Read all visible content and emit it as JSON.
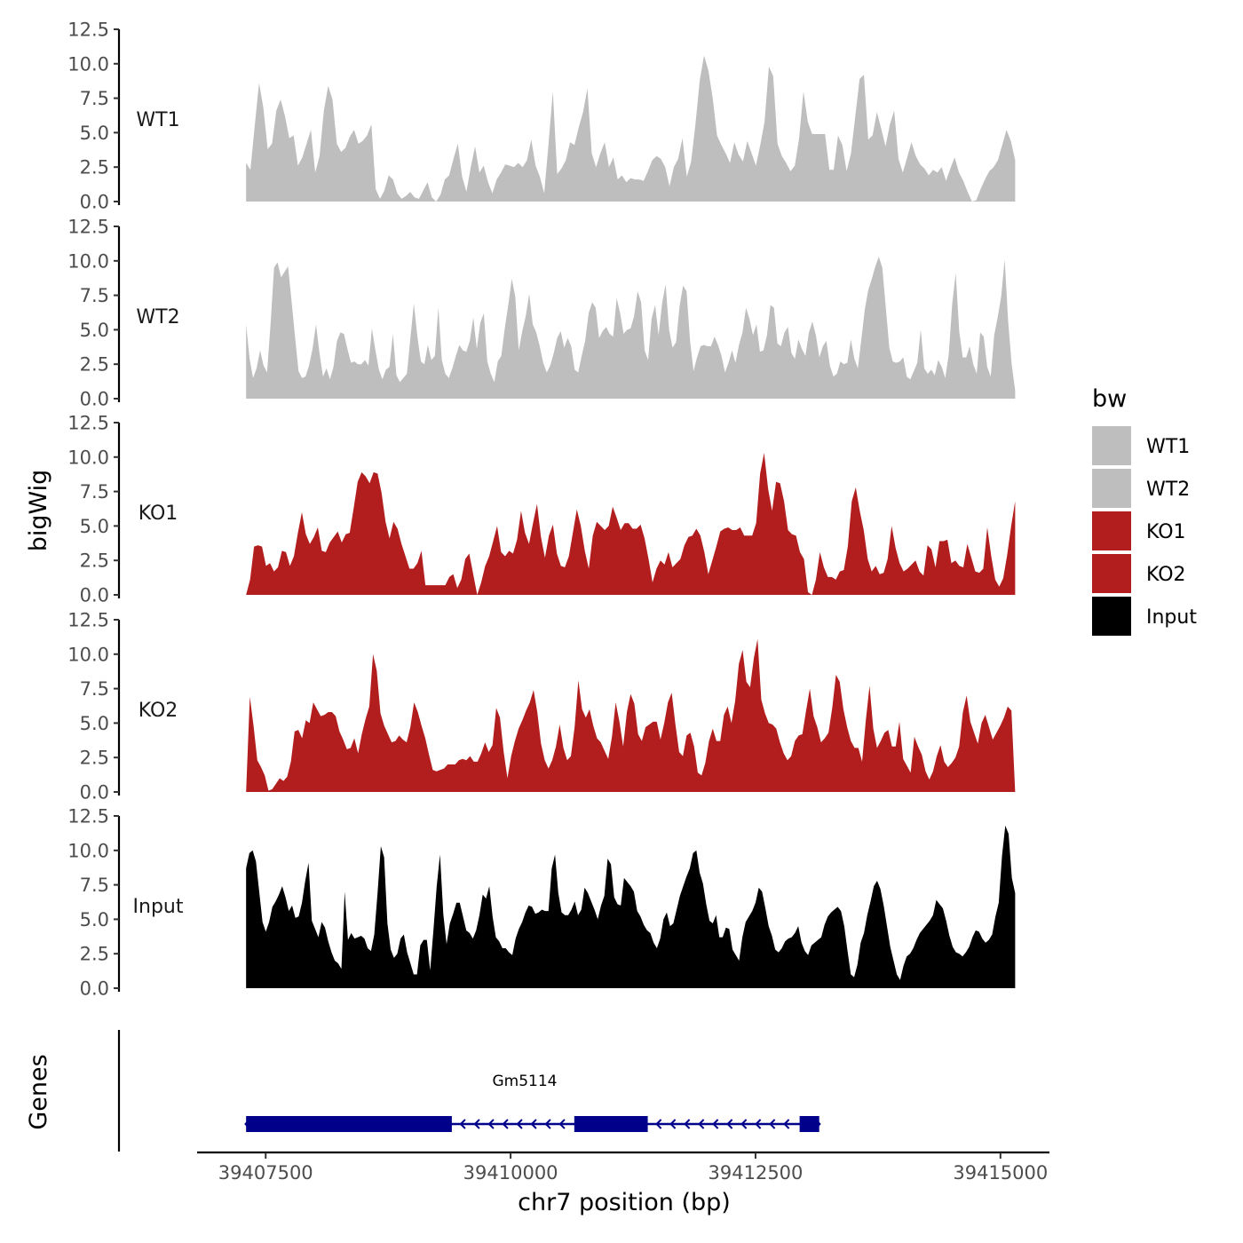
{
  "chart_data": {
    "type": "area",
    "chromosome": "chr7",
    "xlabel": "chr7 position (bp)",
    "ylabel": "bigWig",
    "genes_label": "Genes",
    "xlim": [
      39406800,
      39415500
    ],
    "x_ticks": [
      39407500,
      39410000,
      39412500,
      39415000
    ],
    "x_tick_labels": [
      "39407500",
      "39410000",
      "39412500",
      "39415000"
    ],
    "ylim": [
      0,
      12.5
    ],
    "y_ticks": [
      0,
      2.5,
      5,
      7.5,
      10,
      12.5
    ],
    "y_tick_labels": [
      "0.0",
      "2.5",
      "5.0",
      "7.5",
      "10.0",
      "12.5"
    ],
    "x_start": 39407300,
    "x_end": 39415150,
    "legend": {
      "title": "bw",
      "entries": [
        {
          "label": "WT1",
          "color": "#bebebe"
        },
        {
          "label": "WT2",
          "color": "#bebebe"
        },
        {
          "label": "KO1",
          "color": "#b21e1e"
        },
        {
          "label": "KO2",
          "color": "#b21e1e"
        },
        {
          "label": "Input",
          "color": "#000000"
        }
      ]
    },
    "series": [
      {
        "name": "WT1",
        "color": "#bebebe",
        "values": [
          2.8,
          2.3,
          5.5,
          8.6,
          6.8,
          3.8,
          4.2,
          6.6,
          7.4,
          6.2,
          4.6,
          4.8,
          2.6,
          3.2,
          4.2,
          5.2,
          2.1,
          3.3,
          6.6,
          8.4,
          7.4,
          4.2,
          3.6,
          3.9,
          4.7,
          5.2,
          4.2,
          4.4,
          4.8,
          5.6,
          0.9,
          0.2,
          0.8,
          1.9,
          1.6,
          0.6,
          0.2,
          0.4,
          0.7,
          0.3,
          0.2,
          0.8,
          1.4,
          0.3,
          -0.5,
          0.5,
          1.6,
          1.9,
          3.1,
          4.2,
          1.8,
          0.7,
          2.5,
          4.0,
          2.1,
          2.6,
          1.4,
          0.6,
          1.6,
          2.1,
          2.7,
          2.6,
          2.5,
          2.8,
          2.5,
          3.0,
          4.5,
          2.6,
          1.8,
          0.6,
          4.2,
          8.0,
          2.0,
          2.4,
          3.0,
          4.3,
          4.1,
          5.4,
          6.5,
          8.2,
          3.5,
          2.5,
          3.5,
          4.3,
          2.5,
          3.2,
          1.6,
          1.9,
          1.4,
          1.7,
          1.6,
          1.6,
          1.5,
          2.2,
          3.0,
          3.3,
          3.1,
          2.5,
          1.1,
          2.5,
          3.1,
          4.6,
          1.8,
          2.9,
          5.6,
          8.8,
          10.6,
          9.5,
          7.5,
          4.8,
          4.1,
          3.5,
          2.8,
          4.3,
          3.4,
          2.9,
          4.4,
          3.5,
          2.6,
          4.1,
          5.8,
          9.8,
          9.1,
          4.2,
          3.3,
          2.8,
          2.2,
          2.6,
          4.6,
          8.0,
          5.8,
          4.9,
          4.9,
          4.9,
          4.9,
          2.3,
          2.3,
          4.8,
          4.1,
          2.2,
          3.5,
          6.2,
          8.9,
          9.2,
          4.5,
          4.8,
          6.5,
          5.3,
          4.0,
          5.6,
          6.6,
          3.1,
          2.1,
          3.2,
          4.3,
          3.3,
          2.7,
          2.4,
          1.9,
          2.3,
          2.1,
          2.5,
          1.5,
          2.4,
          3.2,
          2.1,
          1.5,
          0.7,
          -0.3,
          0.1,
          0.9,
          1.6,
          2.2,
          2.5,
          3.0,
          4.1,
          5.2,
          4.4,
          3.0
        ]
      },
      {
        "name": "WT2",
        "color": "#bebebe",
        "values": [
          5.4,
          2.9,
          1.5,
          2.2,
          3.5,
          2.4,
          1.9,
          5.4,
          9.5,
          9.9,
          8.8,
          9.2,
          9.6,
          7.1,
          4.5,
          2.0,
          1.5,
          1.6,
          2.4,
          3.6,
          5.4,
          3.3,
          1.6,
          2.2,
          1.4,
          2.3,
          4.2,
          4.8,
          4.7,
          3.6,
          2.6,
          2.7,
          2.5,
          2.5,
          2.8,
          2.4,
          5.1,
          3.5,
          2.1,
          1.4,
          2.1,
          2.3,
          4.7,
          1.7,
          1.2,
          1.5,
          1.8,
          4.4,
          6.9,
          4.5,
          2.7,
          2.5,
          3.9,
          2.8,
          3.1,
          6.6,
          2.8,
          1.8,
          1.5,
          2.2,
          3.1,
          3.9,
          3.5,
          3.4,
          4.2,
          5.9,
          3.6,
          5.5,
          6.2,
          2.7,
          1.8,
          1.2,
          2.7,
          3.1,
          5.1,
          6.8,
          8.7,
          7.4,
          3.5,
          4.9,
          6.0,
          7.6,
          5.4,
          4.8,
          3.8,
          2.6,
          1.9,
          2.4,
          3.3,
          4.4,
          4.9,
          3.7,
          4.4,
          3.8,
          2.1,
          1.9,
          3.1,
          4.2,
          6.2,
          7.0,
          6.6,
          4.4,
          4.9,
          5.2,
          4.7,
          4.5,
          7.3,
          6.2,
          4.7,
          5.0,
          5.1,
          6.0,
          7.8,
          7.0,
          3.5,
          2.8,
          5.8,
          6.8,
          4.6,
          6.9,
          8.3,
          5.0,
          3.7,
          4.1,
          6.7,
          8.2,
          7.8,
          4.2,
          2.0,
          3.0,
          3.8,
          3.9,
          3.8,
          3.8,
          4.5,
          3.9,
          3.1,
          1.9,
          2.6,
          3.5,
          2.6,
          3.9,
          4.8,
          6.6,
          5.8,
          4.6,
          5.4,
          3.4,
          3.5,
          4.6,
          6.8,
          6.6,
          4.0,
          3.8,
          4.8,
          5.2,
          3.3,
          2.9,
          4.3,
          3.6,
          3.1,
          4.8,
          5.6,
          4.6,
          3.0,
          3.8,
          4.2,
          2.4,
          1.6,
          1.8,
          2.7,
          2.5,
          2.6,
          4.3,
          2.9,
          2.2,
          4.3,
          6.5,
          7.9,
          8.7,
          9.6,
          10.3,
          9.5,
          6.6,
          3.7,
          2.7,
          2.6,
          2.7,
          3.0,
          1.6,
          1.4,
          2.0,
          2.6,
          5.0,
          2.2,
          1.8,
          2.1,
          1.7,
          2.8,
          2.3,
          1.5,
          3.2,
          6.9,
          9.1,
          4.9,
          3.0,
          3.0,
          3.8,
          2.5,
          1.8,
          4.8,
          4.5,
          2.3,
          1.6,
          4.6,
          5.9,
          7.4,
          10.1,
          5.6,
          2.5,
          0.6
        ]
      },
      {
        "name": "KO1",
        "color": "#b21e1e",
        "values": [
          0.0,
          1.1,
          3.5,
          3.6,
          3.5,
          2.1,
          2.3,
          1.7,
          2.0,
          3.2,
          3.1,
          2.1,
          2.8,
          4.5,
          6.0,
          4.4,
          3.7,
          4.2,
          4.9,
          3.2,
          3.1,
          3.8,
          4.2,
          4.6,
          3.8,
          4.4,
          4.5,
          6.3,
          8.2,
          8.9,
          8.6,
          8.1,
          8.9,
          8.8,
          7.4,
          5.3,
          4.1,
          5.3,
          4.8,
          3.7,
          2.8,
          1.9,
          1.9,
          2.3,
          3.2,
          0.7,
          0.7,
          0.7,
          0.7,
          0.7,
          0.7,
          1.3,
          1.5,
          0.5,
          1.1,
          2.6,
          3.0,
          1.5,
          -0.3,
          0.9,
          2.1,
          2.8,
          3.9,
          5.0,
          3.1,
          2.8,
          3.2,
          3.0,
          4.0,
          6.1,
          4.5,
          3.7,
          5.2,
          6.6,
          4.2,
          2.7,
          4.3,
          5.1,
          3.0,
          2.1,
          2.0,
          2.8,
          4.5,
          6.2,
          5.0,
          3.2,
          1.9,
          4.3,
          5.3,
          5.0,
          4.7,
          5.0,
          6.4,
          5.6,
          4.7,
          5.2,
          5.2,
          4.8,
          4.8,
          5.1,
          4.1,
          2.6,
          0.9,
          1.9,
          2.5,
          2.2,
          3.1,
          2.0,
          2.3,
          2.6,
          3.6,
          4.2,
          4.3,
          4.8,
          4.3,
          3.1,
          1.5,
          2.5,
          3.5,
          4.6,
          4.8,
          4.9,
          4.7,
          4.7,
          4.9,
          4.3,
          4.3,
          4.3,
          5.2,
          8.8,
          10.3,
          7.7,
          6.1,
          8.2,
          8.1,
          6.8,
          4.7,
          4.4,
          4.3,
          3.1,
          2.6,
          0.2,
          0.0,
          1.1,
          3.1,
          2.0,
          1.3,
          1.3,
          1.1,
          1.7,
          1.8,
          3.5,
          6.8,
          7.8,
          6.1,
          4.7,
          2.6,
          1.7,
          2.1,
          1.5,
          1.6,
          2.6,
          5.0,
          3.4,
          2.3,
          1.7,
          1.9,
          2.2,
          2.5,
          1.7,
          1.4,
          3.6,
          3.3,
          2.0,
          3.9,
          3.9,
          4.0,
          2.3,
          2.5,
          2.1,
          2.0,
          3.7,
          2.7,
          1.7,
          1.6,
          1.9,
          4.9,
          2.8,
          1.1,
          0.6,
          1.2,
          2.9,
          5.0,
          6.8
        ]
      },
      {
        "name": "KO2",
        "color": "#b21e1e",
        "values": [
          0.0,
          6.9,
          4.8,
          2.3,
          1.8,
          1.2,
          0.1,
          0.2,
          0.6,
          1.0,
          0.8,
          1.1,
          2.2,
          4.4,
          4.5,
          3.9,
          5.2,
          5.0,
          6.5,
          6.0,
          5.5,
          5.6,
          5.8,
          5.8,
          5.5,
          4.4,
          3.8,
          3.1,
          3.2,
          3.9,
          2.8,
          4.2,
          5.3,
          6.2,
          10.0,
          8.8,
          5.7,
          4.8,
          4.2,
          3.6,
          3.7,
          4.1,
          3.8,
          3.6,
          4.7,
          6.5,
          5.8,
          4.8,
          3.9,
          2.7,
          1.6,
          1.5,
          1.6,
          1.7,
          2.0,
          2.0,
          2.0,
          2.3,
          2.4,
          2.3,
          2.6,
          2.2,
          2.2,
          2.8,
          3.6,
          2.9,
          3.4,
          6.1,
          5.4,
          2.9,
          1.0,
          2.6,
          3.7,
          4.6,
          5.2,
          5.9,
          6.5,
          7.4,
          5.8,
          3.5,
          2.3,
          1.7,
          2.3,
          3.3,
          4.9,
          3.2,
          2.3,
          2.6,
          4.7,
          8.1,
          6.0,
          5.4,
          6.0,
          4.8,
          3.9,
          3.6,
          3.0,
          2.4,
          4.0,
          6.5,
          5.1,
          3.3,
          5.8,
          7.1,
          6.4,
          4.2,
          3.7,
          4.7,
          4.9,
          5.1,
          5.1,
          3.8,
          5.0,
          6.5,
          7.2,
          4.9,
          2.9,
          2.6,
          4.1,
          4.3,
          3.3,
          1.4,
          1.2,
          2.1,
          3.7,
          4.6,
          3.7,
          3.7,
          5.6,
          6.2,
          5.0,
          6.6,
          9.3,
          10.3,
          8.0,
          7.6,
          9.7,
          11.1,
          6.7,
          5.7,
          5.0,
          4.9,
          4.6,
          3.6,
          2.8,
          2.3,
          2.6,
          3.7,
          4.1,
          4.2,
          5.9,
          7.5,
          5.5,
          4.7,
          3.6,
          3.9,
          4.3,
          6.1,
          8.5,
          8.0,
          6.0,
          4.7,
          3.7,
          3.2,
          3.2,
          2.2,
          5.2,
          7.7,
          4.6,
          3.2,
          3.7,
          4.3,
          4.5,
          3.3,
          3.3,
          5.1,
          2.4,
          1.9,
          1.4,
          4.0,
          3.3,
          2.7,
          1.5,
          0.9,
          1.5,
          2.6,
          3.4,
          2.2,
          1.8,
          2.1,
          2.5,
          3.3,
          5.8,
          7.0,
          5.1,
          4.3,
          3.5,
          5.0,
          5.6,
          4.7,
          3.8,
          4.3,
          4.8,
          5.4,
          6.2,
          5.9,
          0.0
        ]
      },
      {
        "name": "Input",
        "color": "#000000",
        "values": [
          8.7,
          9.8,
          10.0,
          9.2,
          7.0,
          4.8,
          4.1,
          4.8,
          5.9,
          6.3,
          6.8,
          7.4,
          6.6,
          5.6,
          6.0,
          5.1,
          5.2,
          6.2,
          7.8,
          9.1,
          4.9,
          4.3,
          3.7,
          4.8,
          4.4,
          3.4,
          2.6,
          2.0,
          1.8,
          1.4,
          7.0,
          3.5,
          4.0,
          3.6,
          3.7,
          3.8,
          3.6,
          2.9,
          2.7,
          3.9,
          6.9,
          10.3,
          9.5,
          4.7,
          2.8,
          2.2,
          2.5,
          3.6,
          3.9,
          2.6,
          1.8,
          1.0,
          1.0,
          3.1,
          3.5,
          3.5,
          1.3,
          4.2,
          7.4,
          9.7,
          5.4,
          3.2,
          4.7,
          5.4,
          6.2,
          6.2,
          5.2,
          4.2,
          4.0,
          3.6,
          4.2,
          5.3,
          6.8,
          6.5,
          7.4,
          5.2,
          3.7,
          3.4,
          2.9,
          2.9,
          2.6,
          2.4,
          3.6,
          4.3,
          4.8,
          5.5,
          6.0,
          5.9,
          5.4,
          5.5,
          5.7,
          5.6,
          5.6,
          8.7,
          9.7,
          6.9,
          5.5,
          5.3,
          5.3,
          5.7,
          6.3,
          5.3,
          5.7,
          7.3,
          6.9,
          6.3,
          5.7,
          5.0,
          6.0,
          6.7,
          9.4,
          9.0,
          6.6,
          6.1,
          6.0,
          8.0,
          7.7,
          7.4,
          7.0,
          5.6,
          5.2,
          4.6,
          4.2,
          4.0,
          3.3,
          2.9,
          3.6,
          5.0,
          5.5,
          4.5,
          4.7,
          5.7,
          6.7,
          7.4,
          8.1,
          8.7,
          9.8,
          10.0,
          8.4,
          7.6,
          6.1,
          4.9,
          4.7,
          5.3,
          3.7,
          3.7,
          4.4,
          4.3,
          2.8,
          2.4,
          2.0,
          3.7,
          4.8,
          5.2,
          5.6,
          6.2,
          7.3,
          7.0,
          5.8,
          4.5,
          3.8,
          2.8,
          2.6,
          2.9,
          3.4,
          3.6,
          3.7,
          4.0,
          4.5,
          3.3,
          2.7,
          2.4,
          3.1,
          3.3,
          3.5,
          3.7,
          4.6,
          5.2,
          5.5,
          5.7,
          5.9,
          5.6,
          4.5,
          2.7,
          1.0,
          0.8,
          1.7,
          3.3,
          4.0,
          5.3,
          6.3,
          7.4,
          7.8,
          7.2,
          6.0,
          4.5,
          3.0,
          2.0,
          1.0,
          0.6,
          1.6,
          2.3,
          2.5,
          2.9,
          3.5,
          4.0,
          4.3,
          4.6,
          4.9,
          5.3,
          6.4,
          6.1,
          5.8,
          4.9,
          3.8,
          3.0,
          2.6,
          2.5,
          2.3,
          2.6,
          3.0,
          3.7,
          4.2,
          4.1,
          3.6,
          3.3,
          3.5,
          3.9,
          5.2,
          6.2,
          9.6,
          11.8,
          11.2,
          8.0,
          6.9
        ]
      }
    ],
    "gene": {
      "name": "Gm5114",
      "strand": "-",
      "start": 39407300,
      "end": 39413150,
      "exons": [
        [
          39407300,
          39409400
        ],
        [
          39410650,
          39411400
        ],
        [
          39412950,
          39413150
        ]
      ]
    }
  }
}
